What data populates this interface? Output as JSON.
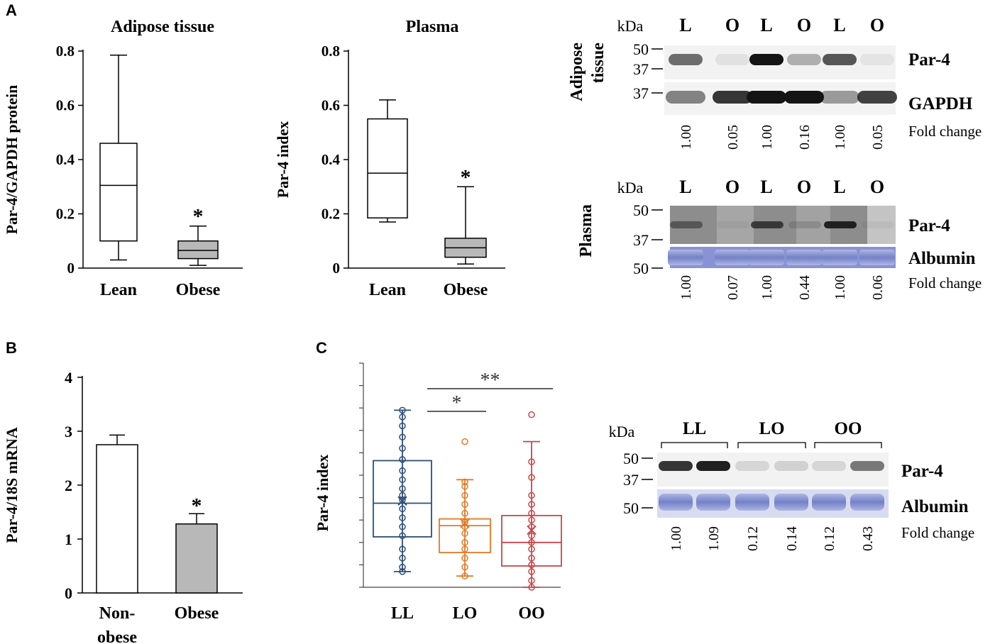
{
  "panels": {
    "A": "A",
    "B": "B",
    "C": "C"
  },
  "chart_data": [
    {
      "id": "A1",
      "type": "box",
      "title": "Adipose tissue",
      "ylabel": "Par-4/GAPDH protein",
      "ylim": [
        0,
        0.8
      ],
      "yticks": [
        "0",
        "0.2",
        "0.4",
        "0.6",
        "0.8"
      ],
      "categories": [
        "Lean",
        "Obese"
      ],
      "boxes": [
        {
          "name": "Lean",
          "min": 0.03,
          "q1": 0.1,
          "median": 0.305,
          "q3": 0.46,
          "max": 0.785
        },
        {
          "name": "Obese",
          "min": 0.01,
          "q1": 0.035,
          "median": 0.065,
          "q3": 0.1,
          "max": 0.155
        }
      ],
      "significance": [
        "",
        "*"
      ]
    },
    {
      "id": "A2",
      "type": "box",
      "title": "Plasma",
      "ylabel": "Par-4 index",
      "ylim": [
        0,
        0.8
      ],
      "yticks": [
        "0",
        "0.2",
        "0.4",
        "0.6",
        "0.8"
      ],
      "categories": [
        "Lean",
        "Obese"
      ],
      "boxes": [
        {
          "name": "Lean",
          "min": 0.17,
          "q1": 0.185,
          "median": 0.35,
          "q3": 0.55,
          "max": 0.62
        },
        {
          "name": "Obese",
          "min": 0.015,
          "q1": 0.04,
          "median": 0.075,
          "q3": 0.11,
          "max": 0.3
        }
      ],
      "significance": [
        "",
        "*"
      ]
    },
    {
      "id": "B",
      "type": "bar",
      "ylabel": "Par-4/18S mRNA",
      "ylim": [
        0,
        4
      ],
      "yticks": [
        "0",
        "1",
        "2",
        "3",
        "4"
      ],
      "categories": [
        "Non-obese",
        "Obese"
      ],
      "category_lines": [
        [
          "Non-",
          "obese"
        ],
        [
          "Obese"
        ]
      ],
      "values": [
        2.75,
        1.28
      ],
      "errors": [
        0.18,
        0.19
      ],
      "significance": [
        "",
        "*"
      ]
    },
    {
      "id": "C",
      "type": "box",
      "ylabel": "Par-4 index",
      "ylim": [
        0,
        1
      ],
      "categories": [
        "LL",
        "LO",
        "OO"
      ],
      "colors": [
        "#2c4f78",
        "#e27a25",
        "#c5474a"
      ],
      "boxes": [
        {
          "name": "LL",
          "min": 0.07,
          "q1": 0.225,
          "median": 0.375,
          "q3": 0.565,
          "max": 0.79,
          "mean": 0.385,
          "points": [
            0.07,
            0.09,
            0.13,
            0.17,
            0.23,
            0.27,
            0.31,
            0.35,
            0.39,
            0.41,
            0.44,
            0.48,
            0.52,
            0.57,
            0.62,
            0.67,
            0.72,
            0.76,
            0.79
          ]
        },
        {
          "name": "LO",
          "min": 0.05,
          "q1": 0.155,
          "median": 0.275,
          "q3": 0.305,
          "max": 0.48,
          "mean": 0.285,
          "points": [
            0.05,
            0.09,
            0.13,
            0.17,
            0.2,
            0.24,
            0.27,
            0.29,
            0.33,
            0.37,
            0.41,
            0.45,
            0.47,
            0.65
          ]
        },
        {
          "name": "OO",
          "min": 0.0,
          "q1": 0.095,
          "median": 0.2,
          "q3": 0.32,
          "max": 0.65,
          "mean": 0.255,
          "points": [
            0.0,
            0.03,
            0.07,
            0.1,
            0.13,
            0.17,
            0.2,
            0.23,
            0.27,
            0.3,
            0.33,
            0.37,
            0.41,
            0.49,
            0.56,
            0.77
          ]
        }
      ],
      "brackets": [
        {
          "from": "LL",
          "to": "LO",
          "label": "*"
        },
        {
          "from": "LL",
          "to": "OO",
          "label": "**"
        }
      ]
    }
  ],
  "blots": {
    "adipose": {
      "side_label": [
        "Adipose",
        "tissue"
      ],
      "kda_header": "kDa",
      "lanes": [
        "L",
        "O",
        "L",
        "O",
        "L",
        "O"
      ],
      "markers": [
        "50",
        "37",
        "37"
      ],
      "band_labels": [
        "Par-4",
        "GAPDH"
      ],
      "fold_change_label": "Fold change",
      "fold_change": [
        "1.00",
        "0.05",
        "1.00",
        "0.16",
        "1.00",
        "0.05"
      ],
      "par4_intensity": [
        0.6,
        0.08,
        1.0,
        0.3,
        0.7,
        0.06
      ],
      "gapdh_intensity": [
        0.5,
        0.85,
        1.0,
        1.0,
        0.4,
        0.8
      ]
    },
    "plasma": {
      "side_label": "Plasma",
      "kda_header": "kDa",
      "lanes": [
        "L",
        "O",
        "L",
        "O",
        "L",
        "O"
      ],
      "markers": [
        "50",
        "37",
        "50"
      ],
      "band_labels": [
        "Par-4",
        "Albumin"
      ],
      "fold_change_label": "Fold change",
      "fold_change": [
        "1.00",
        "0.07",
        "1.00",
        "0.44",
        "1.00",
        "0.06"
      ],
      "par4_intensity": [
        0.45,
        0.05,
        0.7,
        0.15,
        0.9,
        0.05
      ]
    },
    "panelC": {
      "kda_header": "kDa",
      "groups": [
        "LL",
        "LO",
        "OO"
      ],
      "markers": [
        "50",
        "37",
        "50"
      ],
      "band_labels": [
        "Par-4",
        "Albumin"
      ],
      "fold_change_label": "Fold change",
      "fold_change": [
        "1.00",
        "1.09",
        "0.12",
        "0.14",
        "0.12",
        "0.43"
      ],
      "par4_intensity": [
        0.85,
        0.95,
        0.12,
        0.15,
        0.12,
        0.55
      ]
    }
  }
}
